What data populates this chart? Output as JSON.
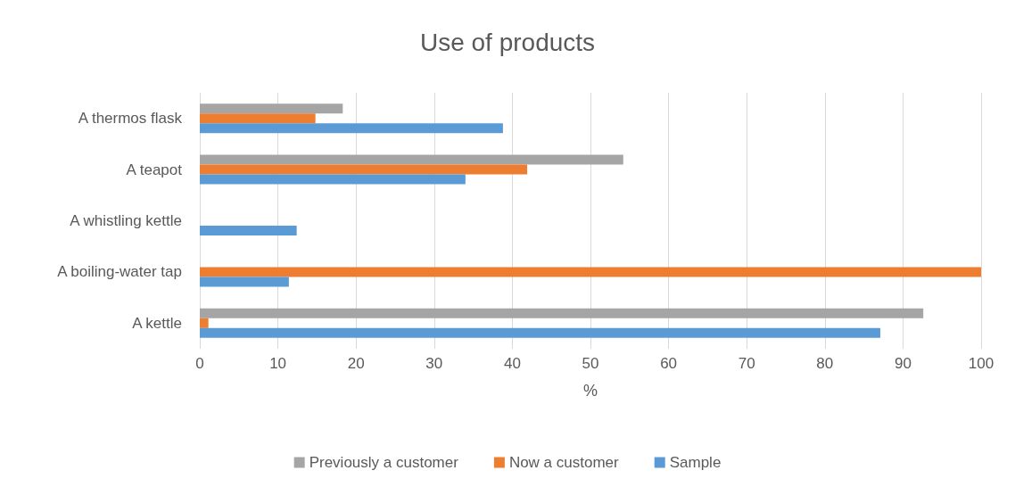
{
  "chart_data": {
    "type": "bar",
    "orientation": "horizontal",
    "title": "Use of products",
    "xlabel": "%",
    "categories": [
      "A thermos flask",
      "A teapot",
      "A whistling kettle",
      "A boiling-water tap",
      "A kettle"
    ],
    "series": [
      {
        "name": "Previously a customer",
        "color": "#a5a5a5",
        "values": [
          18.3,
          54.2,
          null,
          null,
          92.6
        ]
      },
      {
        "name": "Now a customer",
        "color": "#ed7d31",
        "values": [
          14.8,
          41.9,
          null,
          100,
          1.1
        ]
      },
      {
        "name": "Sample",
        "color": "#5b9bd5",
        "values": [
          38.8,
          34.0,
          12.4,
          11.4,
          87.1
        ]
      }
    ],
    "xlim": [
      0,
      100
    ],
    "xticks": [
      0,
      10,
      20,
      30,
      40,
      50,
      60,
      70,
      80,
      90,
      100
    ],
    "grid": "x",
    "legend": "bottom"
  }
}
